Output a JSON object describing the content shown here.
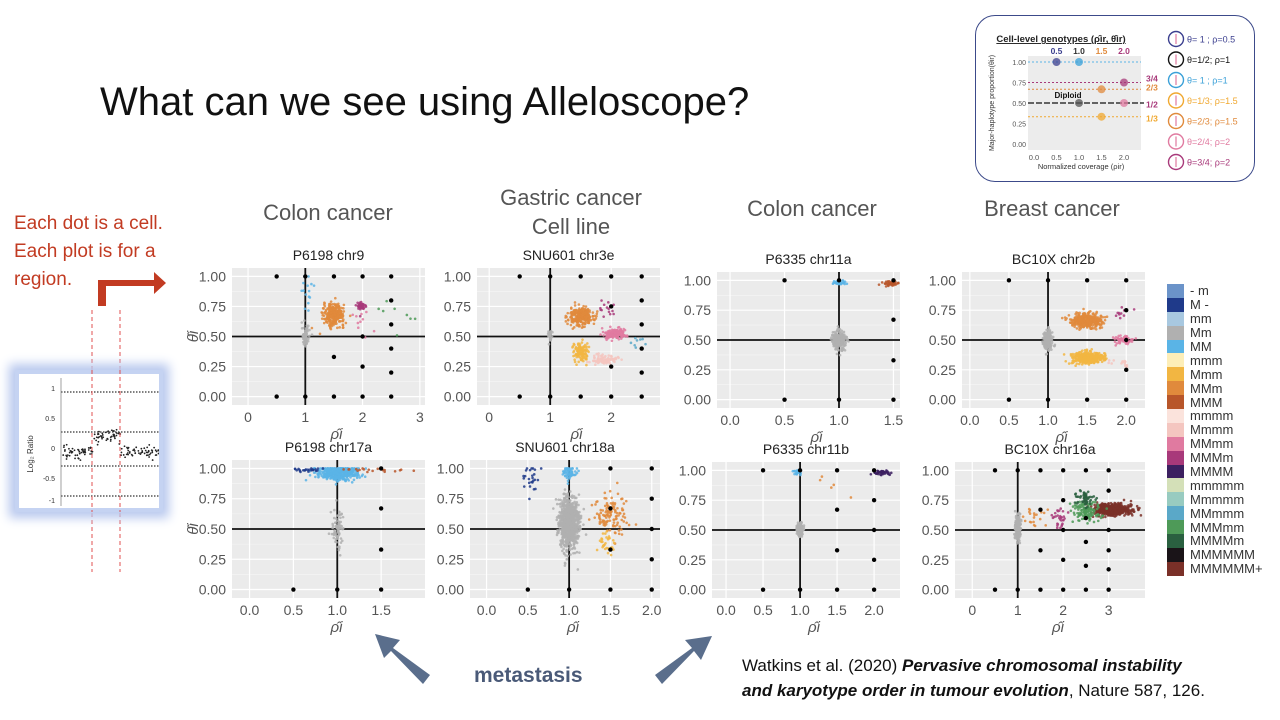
{
  "slide": {
    "title": "What can we see using Alleloscope?",
    "columns": [
      "Colon cancer",
      "Gastric cancer",
      "Cell line",
      "Colon cancer",
      "Breast cancer"
    ],
    "note_lines": [
      "Each dot is a cell.",
      "Each plot is for a",
      "region."
    ],
    "metastasis_label": "metastasis",
    "citation": {
      "line1_plain": "Watkins et al. (2020) ",
      "line1_italic": "Pervasive chromosomal instability",
      "line2_italic": "and karyotype order in tumour evolution",
      "line2_plain": ", Nature 587, 126."
    },
    "inset_logratio": {
      "ylabel": "Log₂ Ratio",
      "yticks": [
        "1",
        "0.5",
        "0",
        "-0.5",
        "-1"
      ]
    }
  },
  "genotype_box": {
    "title": "Cell-level genotypes (ρ̂ir, θ̂ir)",
    "top_labels": [
      "0.5",
      "1.0",
      "1.5",
      "2.0"
    ],
    "right_labels": [
      "3/4",
      "2/3",
      "1/2",
      "1/3"
    ],
    "diploid": "Diploid",
    "ylabel": "Major-haplotype proportion(θir)",
    "xlabel": "Normalized coverage (ρir)",
    "yticks": [
      "1.00",
      "0.75",
      "0.50",
      "0.25",
      "0.00"
    ],
    "xticks": [
      "0.0",
      "0.5",
      "1.0",
      "1.5",
      "2.0"
    ],
    "legend": [
      {
        "label": "θ= 1 ; ρ=0.5",
        "color": "#3b3f8f"
      },
      {
        "label": "θ=1/2; ρ=1",
        "color": "#111111"
      },
      {
        "label": "θ= 1 ; ρ=1",
        "color": "#3aa0d8"
      },
      {
        "label": "θ=1/3; ρ=1.5",
        "color": "#f0a830"
      },
      {
        "label": "θ=2/3; ρ=1.5",
        "color": "#e08a3c"
      },
      {
        "label": "θ=2/4; ρ=2",
        "color": "#e07aa0"
      },
      {
        "label": "θ=3/4; ρ=2",
        "color": "#a8397a"
      }
    ]
  },
  "genotype_legend": [
    {
      "label": "- m",
      "color": "#6b93c9"
    },
    {
      "label": "M -",
      "color": "#1f3a8a"
    },
    {
      "label": "mm",
      "color": "#a8c8e0"
    },
    {
      "label": "Mm",
      "color": "#b0b0b0"
    },
    {
      "label": "MM",
      "color": "#5ab4e6"
    },
    {
      "label": "mmm",
      "color": "#fdeeb8"
    },
    {
      "label": "Mmm",
      "color": "#f2b642"
    },
    {
      "label": "MMm",
      "color": "#e08a3c"
    },
    {
      "label": "MMM",
      "color": "#b8562a"
    },
    {
      "label": "mmmm",
      "color": "#fbe3dc"
    },
    {
      "label": "Mmmm",
      "color": "#f4c6c0"
    },
    {
      "label": "MMmm",
      "color": "#e07aa0"
    },
    {
      "label": "MMMm",
      "color": "#a8397a"
    },
    {
      "label": "MMMM",
      "color": "#3c2060"
    },
    {
      "label": "mmmmm",
      "color": "#d4e0b8"
    },
    {
      "label": "Mmmmm",
      "color": "#98cbc0"
    },
    {
      "label": "MMmmm",
      "color": "#5aa8c8"
    },
    {
      "label": "MMMmm",
      "color": "#4e9a58"
    },
    {
      "label": "MMMMm",
      "color": "#2a6040"
    },
    {
      "label": "MMMMMM",
      "color": "#1a1418"
    },
    {
      "label": "MMMMMM+",
      "color": "#7a3028"
    }
  ],
  "chart_data": [
    {
      "type": "scatter",
      "title": "P6198 chr9",
      "xlabel": "ρ̂i",
      "ylabel": "θ̂i",
      "xlim": [
        -0.28,
        3.09
      ],
      "ylim": [
        -0.07,
        1.07
      ],
      "xticks": [
        "0",
        "1",
        "2",
        "3"
      ],
      "yticks": [
        "0.00",
        "0.25",
        "0.50",
        "0.75",
        "1.00"
      ],
      "clusters": [
        {
          "genotype": "Mm",
          "x": 1,
          "y": 0.5,
          "sx": 0.03,
          "sy": 0.04,
          "n": 80
        },
        {
          "genotype": "MMm",
          "x": 1.5,
          "y": 0.68,
          "sx": 0.09,
          "sy": 0.045,
          "n": 300
        },
        {
          "genotype": "MMMm",
          "x": 1.97,
          "y": 0.75,
          "sx": 0.05,
          "sy": 0.02,
          "n": 40
        },
        {
          "genotype": "MM",
          "x": 1.05,
          "y": 0.88,
          "sx": 0.05,
          "sy": 0.08,
          "n": 15
        },
        {
          "genotype": "MMmm",
          "x": 2.0,
          "y": 0.6,
          "sx": 0.1,
          "sy": 0.1,
          "n": 10
        },
        {
          "genotype": "MMMmm",
          "x": 2.6,
          "y": 0.7,
          "sx": 0.2,
          "sy": 0.06,
          "n": 8
        }
      ],
      "reference_points": [
        [
          0.5,
          1
        ],
        [
          1,
          1
        ],
        [
          1.5,
          1
        ],
        [
          2,
          1
        ],
        [
          2.5,
          1
        ],
        [
          2.5,
          0.8
        ],
        [
          2.5,
          0.6
        ],
        [
          2,
          0.5
        ],
        [
          2.5,
          0.4
        ],
        [
          1.5,
          0.33
        ],
        [
          2,
          0.25
        ],
        [
          2.5,
          0.2
        ],
        [
          0.5,
          0
        ],
        [
          1,
          0
        ],
        [
          1.5,
          0
        ],
        [
          2,
          0
        ],
        [
          2.5,
          0
        ]
      ]
    },
    {
      "type": "scatter",
      "title": "SNU601 chr3e",
      "xlabel": "ρ̂i",
      "ylabel": "",
      "xlim": [
        -0.2,
        2.8
      ],
      "ylim": [
        -0.07,
        1.07
      ],
      "xticks": [
        "0",
        "1",
        "2"
      ],
      "yticks": [
        "0.00",
        "0.25",
        "0.50",
        "0.75",
        "1.00"
      ],
      "clusters": [
        {
          "genotype": "Mm",
          "x": 1,
          "y": 0.5,
          "sx": 0.02,
          "sy": 0.03,
          "n": 30
        },
        {
          "genotype": "MMm",
          "x": 1.5,
          "y": 0.67,
          "sx": 0.1,
          "sy": 0.04,
          "n": 250
        },
        {
          "genotype": "Mmm",
          "x": 1.5,
          "y": 0.37,
          "sx": 0.06,
          "sy": 0.04,
          "n": 120
        },
        {
          "genotype": "MMmm",
          "x": 2.05,
          "y": 0.52,
          "sx": 0.1,
          "sy": 0.02,
          "n": 150
        },
        {
          "genotype": "Mmmm",
          "x": 1.9,
          "y": 0.31,
          "sx": 0.1,
          "sy": 0.02,
          "n": 80
        },
        {
          "genotype": "MMMm",
          "x": 1.95,
          "y": 0.73,
          "sx": 0.08,
          "sy": 0.03,
          "n": 15
        },
        {
          "genotype": "MMmmm",
          "x": 2.4,
          "y": 0.45,
          "sx": 0.1,
          "sy": 0.04,
          "n": 8
        }
      ],
      "reference_points": [
        [
          0.5,
          1
        ],
        [
          1,
          1
        ],
        [
          1.5,
          1
        ],
        [
          2,
          1
        ],
        [
          2.5,
          1
        ],
        [
          2.5,
          0.8
        ],
        [
          2.5,
          0.6
        ],
        [
          2,
          0.75
        ],
        [
          2.5,
          0.4
        ],
        [
          2,
          0.25
        ],
        [
          2.5,
          0.2
        ],
        [
          0.5,
          0
        ],
        [
          1,
          0
        ],
        [
          1.5,
          0
        ],
        [
          2,
          0
        ],
        [
          2.5,
          0
        ]
      ]
    },
    {
      "type": "scatter",
      "title": "P6335 chr11a",
      "xlabel": "ρ̂i",
      "ylabel": "",
      "xlim": [
        -0.12,
        1.56
      ],
      "ylim": [
        -0.07,
        1.07
      ],
      "xticks": [
        "0.0",
        "0.5",
        "1.0",
        "1.5"
      ],
      "yticks": [
        "0.00",
        "0.25",
        "0.50",
        "0.75",
        "1.00"
      ],
      "clusters": [
        {
          "genotype": "Mm",
          "x": 1,
          "y": 0.5,
          "sx": 0.03,
          "sy": 0.04,
          "n": 250
        },
        {
          "genotype": "MM",
          "x": 1,
          "y": 0.98,
          "sx": 0.04,
          "sy": 0.01,
          "n": 30
        },
        {
          "genotype": "MMM",
          "x": 1.47,
          "y": 0.97,
          "sx": 0.04,
          "sy": 0.01,
          "n": 40
        }
      ],
      "reference_points": [
        [
          0.5,
          1
        ],
        [
          1,
          1
        ],
        [
          1.5,
          1
        ],
        [
          1.5,
          0.67
        ],
        [
          1.5,
          0.33
        ],
        [
          0.5,
          0
        ],
        [
          1,
          0
        ],
        [
          1.5,
          0
        ]
      ]
    },
    {
      "type": "scatter",
      "title": "BC10X chr2b",
      "xlabel": "ρ̂i",
      "ylabel": "",
      "xlim": [
        -0.1,
        2.24
      ],
      "ylim": [
        -0.07,
        1.07
      ],
      "xticks": [
        "0.0",
        "0.5",
        "1.0",
        "1.5",
        "2.0"
      ],
      "yticks": [
        "0.00",
        "0.25",
        "0.50",
        "0.75",
        "1.00"
      ],
      "clusters": [
        {
          "genotype": "Mm",
          "x": 1,
          "y": 0.5,
          "sx": 0.03,
          "sy": 0.04,
          "n": 200
        },
        {
          "genotype": "MMm",
          "x": 1.5,
          "y": 0.66,
          "sx": 0.1,
          "sy": 0.03,
          "n": 350
        },
        {
          "genotype": "Mmm",
          "x": 1.5,
          "y": 0.35,
          "sx": 0.1,
          "sy": 0.025,
          "n": 350
        },
        {
          "genotype": "MMmm",
          "x": 1.95,
          "y": 0.5,
          "sx": 0.07,
          "sy": 0.02,
          "n": 60
        },
        {
          "genotype": "Mmmm",
          "x": 1.95,
          "y": 0.3,
          "sx": 0.08,
          "sy": 0.02,
          "n": 15
        },
        {
          "genotype": "MMMm",
          "x": 1.95,
          "y": 0.72,
          "sx": 0.05,
          "sy": 0.03,
          "n": 10
        }
      ],
      "reference_points": [
        [
          0.5,
          1
        ],
        [
          1,
          1
        ],
        [
          1.5,
          1
        ],
        [
          2,
          1
        ],
        [
          2,
          0.75
        ],
        [
          2,
          0.5
        ],
        [
          2,
          0.25
        ],
        [
          0.5,
          0
        ],
        [
          1,
          0
        ],
        [
          1.5,
          0
        ],
        [
          2,
          0
        ]
      ]
    },
    {
      "type": "scatter",
      "title": "P6198 chr17a",
      "xlabel": "ρ̂i",
      "ylabel": "θ̂i",
      "xlim": [
        -0.2,
        2.0
      ],
      "ylim": [
        -0.07,
        1.07
      ],
      "xticks": [
        "0.0",
        "0.5",
        "1.0",
        "1.5"
      ],
      "yticks": [
        "0.00",
        "0.25",
        "0.50",
        "0.75",
        "1.00"
      ],
      "clusters": [
        {
          "genotype": "MM",
          "x": 1,
          "y": 0.96,
          "sx": 0.12,
          "sy": 0.03,
          "n": 400
        },
        {
          "genotype": "M-",
          "x": 0.65,
          "y": 0.99,
          "sx": 0.08,
          "sy": 0.01,
          "n": 25
        },
        {
          "genotype": "MMM",
          "x": 1.5,
          "y": 0.99,
          "sx": 0.15,
          "sy": 0.01,
          "n": 20
        },
        {
          "genotype": "Mm",
          "x": 1,
          "y": 0.5,
          "sx": 0.03,
          "sy": 0.08,
          "n": 80
        }
      ],
      "reference_points": [
        [
          1.5,
          1
        ],
        [
          1.5,
          0.67
        ],
        [
          1.5,
          0.33
        ],
        [
          0.5,
          0
        ],
        [
          1,
          0
        ],
        [
          1.5,
          0
        ]
      ]
    },
    {
      "type": "scatter",
      "title": "SNU601 chr18a",
      "xlabel": "ρ̂i",
      "ylabel": "",
      "xlim": [
        -0.2,
        2.1
      ],
      "ylim": [
        -0.07,
        1.07
      ],
      "xticks": [
        "0.0",
        "0.5",
        "1.0",
        "1.5",
        "2.0"
      ],
      "yticks": [
        "0.00",
        "0.25",
        "0.50",
        "0.75",
        "1.00"
      ],
      "clusters": [
        {
          "genotype": "Mm",
          "x": 1,
          "y": 0.55,
          "sx": 0.06,
          "sy": 0.1,
          "n": 900
        },
        {
          "genotype": "MM",
          "x": 1,
          "y": 0.97,
          "sx": 0.04,
          "sy": 0.03,
          "n": 60
        },
        {
          "genotype": "M-",
          "x": 0.55,
          "y": 0.93,
          "sx": 0.05,
          "sy": 0.06,
          "n": 25
        },
        {
          "genotype": "MMm",
          "x": 1.5,
          "y": 0.63,
          "sx": 0.1,
          "sy": 0.08,
          "n": 120
        },
        {
          "genotype": "Mmm",
          "x": 1.45,
          "y": 0.38,
          "sx": 0.06,
          "sy": 0.06,
          "n": 30
        }
      ],
      "reference_points": [
        [
          1.5,
          1
        ],
        [
          2,
          1
        ],
        [
          2,
          0.75
        ],
        [
          1.5,
          0.67
        ],
        [
          2,
          0.5
        ],
        [
          1.5,
          0.33
        ],
        [
          2,
          0.25
        ],
        [
          0.5,
          0
        ],
        [
          1,
          0
        ],
        [
          1.5,
          0
        ],
        [
          2,
          0
        ]
      ]
    },
    {
      "type": "scatter",
      "title": "P6335 chr11b",
      "xlabel": "ρ̂i",
      "ylabel": "",
      "xlim": [
        -0.19,
        2.35
      ],
      "ylim": [
        -0.07,
        1.07
      ],
      "xticks": [
        "0.0",
        "0.5",
        "1.0",
        "1.5",
        "2.0"
      ],
      "yticks": [
        "0.00",
        "0.25",
        "0.50",
        "0.75",
        "1.00"
      ],
      "clusters": [
        {
          "genotype": "Mm",
          "x": 1,
          "y": 0.5,
          "sx": 0.02,
          "sy": 0.03,
          "n": 200
        },
        {
          "genotype": "MM",
          "x": 0.97,
          "y": 0.98,
          "sx": 0.03,
          "sy": 0.01,
          "n": 20
        },
        {
          "genotype": "MMMM",
          "x": 2.1,
          "y": 0.98,
          "sx": 0.08,
          "sy": 0.01,
          "n": 40
        },
        {
          "genotype": "MMm",
          "x": 1.45,
          "y": 0.85,
          "sx": 0.15,
          "sy": 0.07,
          "n": 5
        }
      ],
      "reference_points": [
        [
          0.5,
          1
        ],
        [
          1,
          1
        ],
        [
          1.5,
          1
        ],
        [
          2,
          1
        ],
        [
          2,
          0.75
        ],
        [
          1.5,
          0.67
        ],
        [
          2,
          0.5
        ],
        [
          1.5,
          0.33
        ],
        [
          2,
          0.25
        ],
        [
          0.5,
          0
        ],
        [
          1,
          0
        ],
        [
          1.5,
          0
        ],
        [
          2,
          0
        ]
      ]
    },
    {
      "type": "scatter",
      "title": "BC10X chr16a",
      "xlabel": "ρ̂i",
      "ylabel": "",
      "xlim": [
        -0.38,
        3.8
      ],
      "ylim": [
        -0.07,
        1.07
      ],
      "xticks": [
        "0",
        "1",
        "2",
        "3"
      ],
      "yticks": [
        "0.00",
        "0.25",
        "0.50",
        "0.75",
        "1.00"
      ],
      "clusters": [
        {
          "genotype": "Mm",
          "x": 1,
          "y": 0.52,
          "sx": 0.03,
          "sy": 0.05,
          "n": 200
        },
        {
          "genotype": "MMMMMM+",
          "x": 3.1,
          "y": 0.67,
          "sx": 0.2,
          "sy": 0.025,
          "n": 500
        },
        {
          "genotype": "MMMmm",
          "x": 2.5,
          "y": 0.65,
          "sx": 0.15,
          "sy": 0.04,
          "n": 120
        },
        {
          "genotype": "MMMMm",
          "x": 2.5,
          "y": 0.77,
          "sx": 0.1,
          "sy": 0.03,
          "n": 60
        },
        {
          "genotype": "MMMm",
          "x": 1.9,
          "y": 0.6,
          "sx": 0.1,
          "sy": 0.04,
          "n": 30
        },
        {
          "genotype": "MMm",
          "x": 1.4,
          "y": 0.6,
          "sx": 0.15,
          "sy": 0.05,
          "n": 20
        }
      ],
      "reference_points": [
        [
          0.5,
          1
        ],
        [
          1,
          1
        ],
        [
          1.5,
          1
        ],
        [
          2,
          1
        ],
        [
          2.5,
          1
        ],
        [
          3,
          1
        ],
        [
          3,
          0.83
        ],
        [
          2,
          0.75
        ],
        [
          1.5,
          0.67
        ],
        [
          2.5,
          0.6
        ],
        [
          3,
          0.5
        ],
        [
          2,
          0.5
        ],
        [
          2.5,
          0.4
        ],
        [
          1.5,
          0.33
        ],
        [
          3,
          0.33
        ],
        [
          2,
          0.25
        ],
        [
          2.5,
          0.2
        ],
        [
          3,
          0.17
        ],
        [
          0.5,
          0
        ],
        [
          1,
          0
        ],
        [
          1.5,
          0
        ],
        [
          2,
          0
        ],
        [
          2.5,
          0
        ],
        [
          3,
          0
        ]
      ]
    }
  ]
}
